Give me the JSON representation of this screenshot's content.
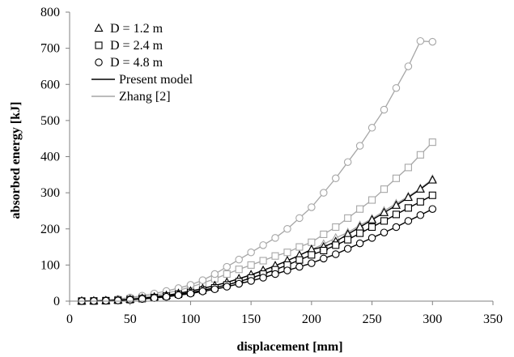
{
  "chart_data": {
    "type": "line",
    "xlabel": "displacement [mm]",
    "ylabel": "absorbed energy [kJ]",
    "xlim": [
      0,
      350
    ],
    "ylim": [
      0,
      800
    ],
    "xticks": [
      0,
      50,
      100,
      150,
      200,
      250,
      300,
      350
    ],
    "yticks": [
      0,
      100,
      200,
      300,
      400,
      500,
      600,
      700,
      800
    ],
    "grid": false,
    "legend_position": "top-left",
    "colors": {
      "present": "#000000",
      "zhang": "#a6a6a6"
    },
    "x": [
      10,
      20,
      30,
      40,
      50,
      60,
      70,
      80,
      90,
      100,
      110,
      120,
      130,
      140,
      150,
      160,
      170,
      180,
      190,
      200,
      210,
      220,
      230,
      240,
      250,
      260,
      270,
      280,
      290,
      300
    ],
    "series": [
      {
        "name": "D = 1.2 m",
        "marker": "triangle",
        "model": "present",
        "values": [
          0.1,
          0.5,
          1.3,
          2.8,
          5,
          8,
          11.5,
          16,
          21.5,
          28,
          35,
          43,
          52,
          62,
          73,
          85,
          98,
          112,
          127,
          143,
          150,
          165,
          185,
          205,
          225,
          245,
          265,
          287,
          310,
          335
        ]
      },
      {
        "name": "D = 1.2 m",
        "marker": "triangle",
        "model": "zhang",
        "values": [
          0.1,
          0.5,
          1.3,
          2.8,
          5,
          8,
          11.5,
          16,
          21.5,
          28,
          35,
          43,
          52,
          62,
          73,
          85,
          98,
          112,
          127,
          143,
          158,
          175,
          190,
          210,
          228,
          250,
          270,
          290,
          312,
          338
        ]
      },
      {
        "name": "D = 2.4 m",
        "marker": "square",
        "model": "present",
        "values": [
          0.1,
          0.4,
          1.1,
          2.4,
          4.3,
          7,
          10,
          14,
          19,
          24,
          30,
          37,
          45,
          54,
          64,
          75,
          87,
          100,
          114,
          128,
          140,
          155,
          170,
          188,
          205,
          222,
          240,
          258,
          275,
          293
        ]
      },
      {
        "name": "D = 2.4 m",
        "marker": "square",
        "model": "zhang",
        "values": [
          0.2,
          0.8,
          2,
          4,
          7,
          11,
          16,
          22,
          30,
          39,
          50,
          62,
          75,
          88,
          100,
          112,
          125,
          135,
          150,
          163,
          185,
          205,
          230,
          255,
          280,
          310,
          340,
          370,
          405,
          440
        ]
      },
      {
        "name": "D = 4.8 m",
        "marker": "circle",
        "model": "present",
        "values": [
          0.1,
          0.4,
          1,
          2,
          3.7,
          6,
          8.7,
          12,
          16.5,
          21,
          27,
          33,
          40,
          48,
          56,
          65,
          75,
          85,
          95,
          105,
          118,
          130,
          145,
          160,
          175,
          190,
          205,
          222,
          238,
          255
        ]
      },
      {
        "name": "D = 4.8 m",
        "marker": "circle",
        "model": "zhang",
        "values": [
          0.3,
          1.2,
          3,
          6,
          10,
          15,
          21,
          28,
          36,
          45,
          58,
          75,
          95,
          115,
          135,
          155,
          175,
          200,
          230,
          260,
          300,
          340,
          385,
          430,
          480,
          530,
          590,
          650,
          720,
          718
        ]
      }
    ],
    "legend": [
      {
        "label": "D = 1.2 m",
        "kind": "marker",
        "marker": "triangle"
      },
      {
        "label": "D = 2.4 m",
        "kind": "marker",
        "marker": "square"
      },
      {
        "label": "D = 4.8 m",
        "kind": "marker",
        "marker": "circle"
      },
      {
        "label": "Present model",
        "kind": "line",
        "model": "present"
      },
      {
        "label": "Zhang [2]",
        "kind": "line",
        "model": "zhang"
      }
    ]
  }
}
